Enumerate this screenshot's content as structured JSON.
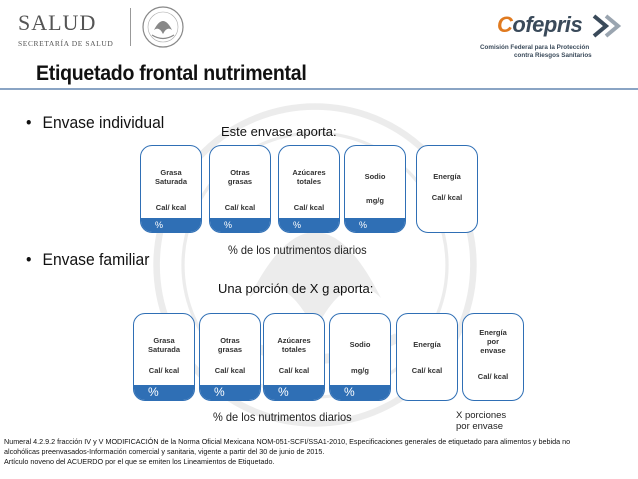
{
  "header": {
    "salud_word": "SALUD",
    "salud_sub": "SECRETARÍA DE SALUD",
    "cofe_c": "C",
    "cofe_rest": "ofepris",
    "cofe_sub1": "Comisión Federal para la Protección",
    "cofe_sub2": "contra Riesgos Sanitarios"
  },
  "title": "Etiquetado frontal nutrimental",
  "section_individual": {
    "bullet": "Envase individual",
    "caption": "Este envase aporta:",
    "note": "% de los nutrimentos diarios",
    "boxes": [
      {
        "label": "Grasa\nSaturada",
        "unit": "Cal/ kcal",
        "band": "%"
      },
      {
        "label": "Otras\ngrasas",
        "unit": "Cal/ kcal",
        "band": "%"
      },
      {
        "label": "Azúcares\ntotales",
        "unit": "Cal/ kcal",
        "band": "%"
      },
      {
        "label": "Sodio",
        "unit": "mg/g",
        "band": "%"
      },
      {
        "label": "Energía",
        "unit": "Cal/ kcal",
        "band": ""
      }
    ]
  },
  "section_familiar": {
    "bullet": "Envase familiar",
    "caption": "Una porción de X g aporta:",
    "note": "% de los nutrimentos diarios",
    "porciones": "X porciones\npor envase",
    "boxes": [
      {
        "label": "Grasa\nSaturada",
        "unit": "Cal/ kcal",
        "band": "%"
      },
      {
        "label": "Otras\ngrasas",
        "unit": "Cal/ kcal",
        "band": "%"
      },
      {
        "label": "Azúcares\ntotales",
        "unit": "Cal/ kcal",
        "band": "%"
      },
      {
        "label": "Sodio",
        "unit": "mg/g",
        "band": "%"
      },
      {
        "label": "Energía",
        "unit": "Cal/ kcal",
        "band": ""
      },
      {
        "label": "Energía\npor\nenvase",
        "unit": "Cal/ kcal",
        "band": ""
      }
    ]
  },
  "footnote": {
    "line1": "Numeral 4.2.9.2 fracción IV y V MODIFICACIÓN de la Norma Oficial Mexicana NOM-051-SCFI/SSA1-2010, Especificaciones generales de etiquetado para alimentos y bebida no",
    "line2": "alcohólicas preenvasados-Información comercial y sanitaria, vigente a partir del 30 de junio de 2015.",
    "line3": "Artículo noveno del ACUERDO por el que se emiten los Lineamientos de Etiquetado."
  },
  "colors": {
    "accent_blue": "#2f6fb5",
    "cofepris_orange": "#e07a1f"
  }
}
